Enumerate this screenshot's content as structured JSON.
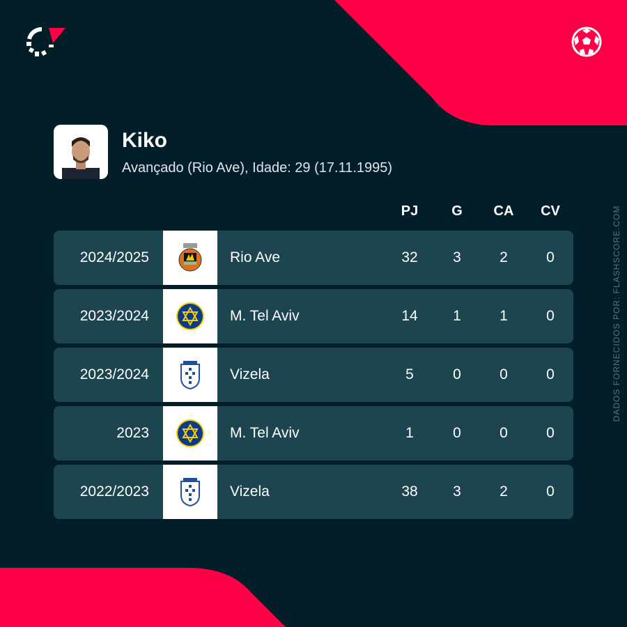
{
  "player": {
    "name": "Kiko",
    "subtitle": "Avançado (Rio Ave), Idade: 29 (17.11.1995)"
  },
  "columns": [
    "PJ",
    "G",
    "CA",
    "CV"
  ],
  "rows": [
    {
      "season": "2024/2025",
      "team": "Rio Ave",
      "crest": "rio-ave",
      "pj": "32",
      "g": "3",
      "ca": "2",
      "cv": "0"
    },
    {
      "season": "2023/2024",
      "team": "M. Tel Aviv",
      "crest": "maccabi",
      "pj": "14",
      "g": "1",
      "ca": "1",
      "cv": "0"
    },
    {
      "season": "2023/2024",
      "team": "Vizela",
      "crest": "vizela",
      "pj": "5",
      "g": "0",
      "ca": "0",
      "cv": "0"
    },
    {
      "season": "2023",
      "team": "M. Tel Aviv",
      "crest": "maccabi",
      "pj": "1",
      "g": "0",
      "ca": "0",
      "cv": "0"
    },
    {
      "season": "2022/2023",
      "team": "Vizela",
      "crest": "vizela",
      "pj": "38",
      "g": "3",
      "ca": "2",
      "cv": "0"
    }
  ],
  "source": "DADOS FORNECIDOS POR: FLASHSCORE.COM",
  "colors": {
    "background": "#011e29",
    "accent": "#ff0046",
    "row": "#1d4550"
  }
}
